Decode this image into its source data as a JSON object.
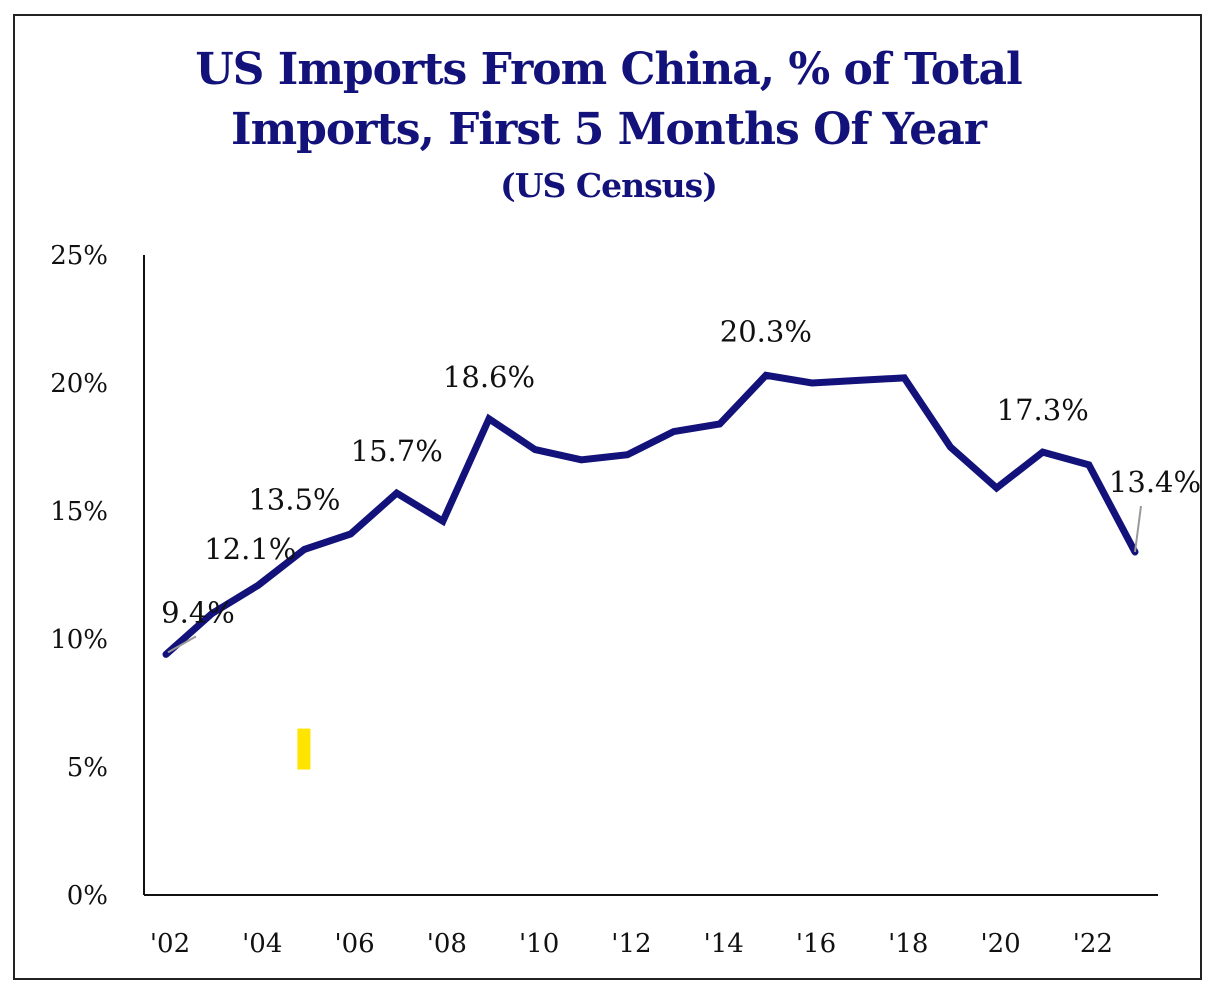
{
  "chart_data": {
    "type": "line",
    "title": "US Imports From China, % of Total Imports, First 5 Months Of Year",
    "title_lines": [
      "US Imports From China, % of Total",
      "Imports, First 5 Months Of Year"
    ],
    "subtitle": "(US Census)",
    "xlabel": "",
    "ylabel": "",
    "ylim": [
      0,
      25
    ],
    "xlim": [
      2002,
      2023
    ],
    "grid": false,
    "legend": "none",
    "y_ticks": [
      "0%",
      "5%",
      "10%",
      "15%",
      "20%",
      "25%"
    ],
    "y_tick_values": [
      0,
      5,
      10,
      15,
      20,
      25
    ],
    "x_ticks": [
      "'02",
      "'04",
      "'06",
      "'08",
      "'10",
      "'12",
      "'14",
      "'16",
      "'18",
      "'20",
      "'22"
    ],
    "x_tick_values": [
      2002,
      2004,
      2006,
      2008,
      2010,
      2012,
      2014,
      2016,
      2018,
      2020,
      2022
    ],
    "x": [
      2002,
      2003,
      2004,
      2005,
      2006,
      2007,
      2008,
      2009,
      2010,
      2011,
      2012,
      2013,
      2014,
      2015,
      2016,
      2017,
      2018,
      2019,
      2020,
      2021,
      2022,
      2023
    ],
    "series": [
      {
        "name": "US imports from China, % of total",
        "color": "#12127a",
        "values": [
          9.4,
          11.0,
          12.1,
          13.5,
          14.1,
          15.7,
          14.6,
          18.6,
          17.4,
          17.0,
          17.2,
          18.1,
          18.4,
          20.3,
          20.0,
          20.1,
          20.2,
          17.5,
          15.9,
          17.3,
          16.8,
          13.4
        ]
      }
    ],
    "annotations": [
      {
        "x": 2002,
        "value": 9.4,
        "text": "9.4%"
      },
      {
        "x": 2004,
        "value": 12.1,
        "text": "12.1%"
      },
      {
        "x": 2005,
        "value": 13.5,
        "text": "13.5%"
      },
      {
        "x": 2007,
        "value": 15.7,
        "text": "15.7%"
      },
      {
        "x": 2009,
        "value": 18.6,
        "text": "18.6%"
      },
      {
        "x": 2015,
        "value": 20.3,
        "text": "20.3%"
      },
      {
        "x": 2021,
        "value": 17.3,
        "text": "17.3%"
      },
      {
        "x": 2023,
        "value": 13.4,
        "text": "13.4%"
      }
    ],
    "marker": {
      "color": "#ffe400",
      "x": 2005,
      "y_range": [
        4.9,
        6.5
      ]
    }
  }
}
